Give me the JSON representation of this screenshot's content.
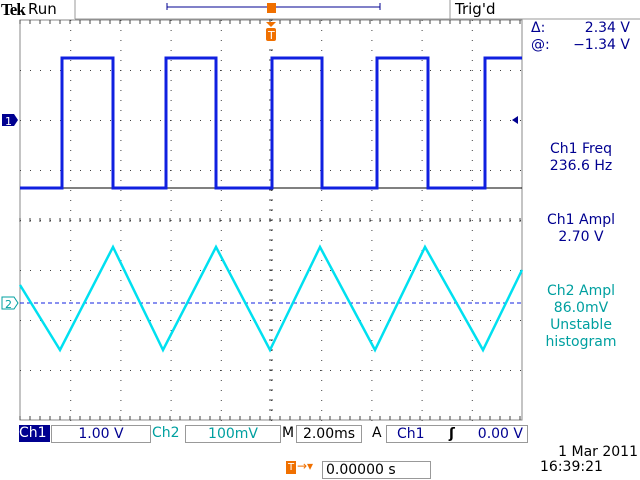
{
  "header": {
    "brand": "Tek",
    "run_state": "Run",
    "trigger_status": "Trig'd"
  },
  "cursor_readout": {
    "delta_label": "Δ:",
    "delta_value": "2.34 V",
    "at_label": "@:",
    "at_value": "−1.34 V"
  },
  "measurements": [
    {
      "label": "Ch1 Freq",
      "value": "236.6 Hz"
    },
    {
      "label": "Ch1 Ampl",
      "value": "2.70 V"
    },
    {
      "label": "Ch2 Ampl",
      "value": "86.0mV",
      "note1": "Unstable",
      "note2": "histogram"
    }
  ],
  "bottom": {
    "ch1_label": "Ch1",
    "ch1_scale": "1.00 V",
    "ch2_label": "Ch2",
    "ch2_scale": "100mV",
    "m_label": "M",
    "timebase": "2.00ms",
    "a_label": "A",
    "trig_source": "Ch1",
    "trig_slope": "rising-edge-icon",
    "trig_level": "0.00 V",
    "trig_position": "0.00000 s",
    "date": "1 Mar  2011",
    "time": "16:39:21"
  },
  "markers": {
    "ch1": "1",
    "ch2": "2",
    "trigger": "T"
  },
  "colors": {
    "ch1": "#1020e0",
    "ch2": "#00e0f0",
    "text_navy": "#000090",
    "text_teal": "#00a0a0",
    "trigger": "#f07000"
  }
}
